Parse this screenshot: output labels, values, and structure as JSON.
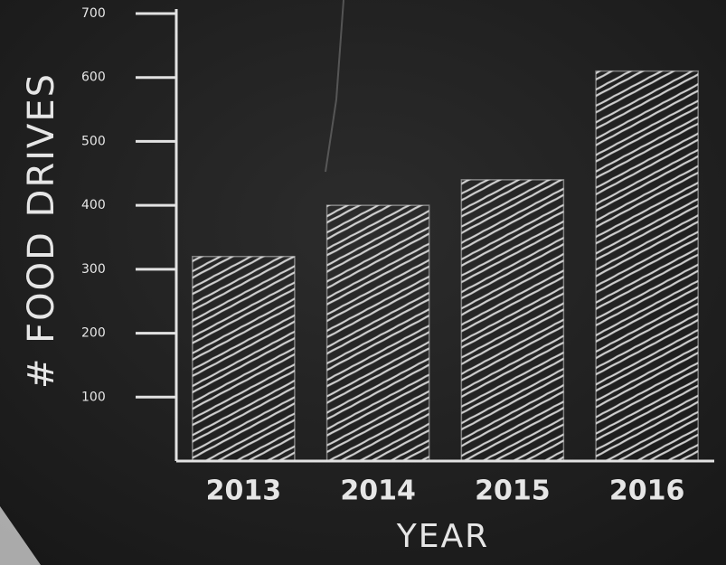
{
  "chart_data": {
    "type": "bar",
    "y_label": "# FOOD DRIVES",
    "x_label": "YEAR",
    "categories": [
      "2013",
      "2014",
      "2015",
      "2016"
    ],
    "values": [
      320,
      400,
      440,
      610
    ],
    "color": "#e2e2e2",
    "ylim": [
      0,
      700
    ],
    "yticks": [
      100,
      200,
      300,
      400,
      500,
      600,
      700
    ]
  }
}
